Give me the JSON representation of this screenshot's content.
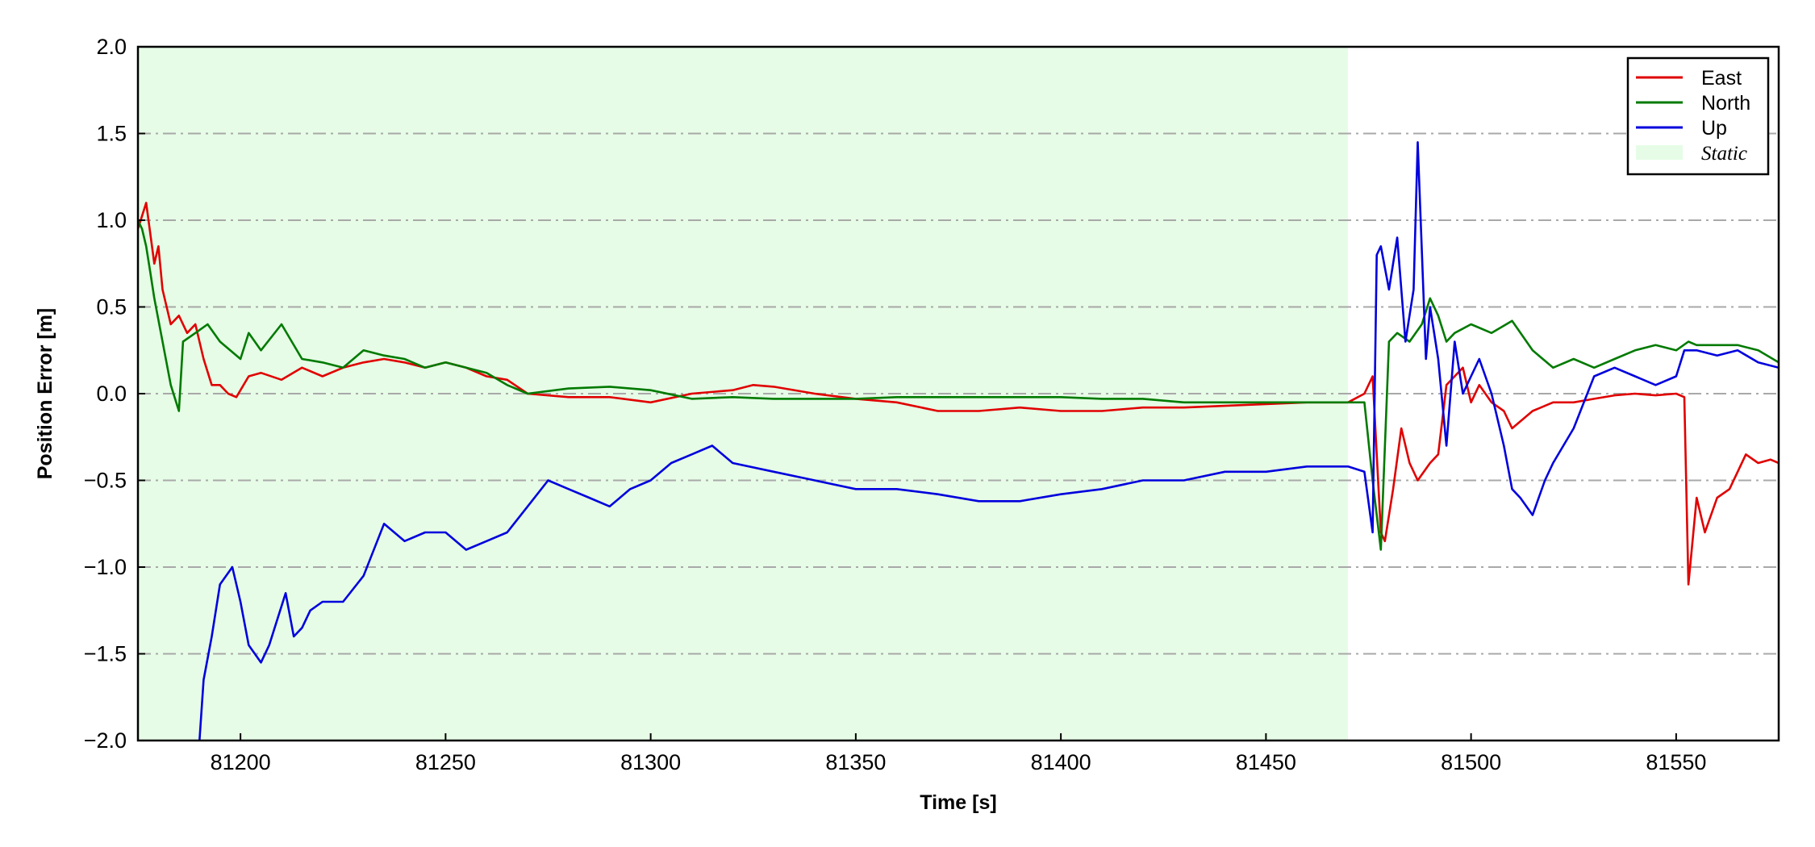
{
  "chart_data": {
    "type": "line",
    "title": "",
    "xlabel": "Time [s]",
    "ylabel": "Position Error [m]",
    "xlim": [
      81175,
      81575
    ],
    "ylim": [
      -2.0,
      2.0
    ],
    "xticks": [
      81200,
      81250,
      81300,
      81350,
      81400,
      81450,
      81500,
      81550
    ],
    "yticks": [
      -2.0,
      -1.5,
      -1.0,
      -0.5,
      0.0,
      0.5,
      1.0,
      1.5,
      2.0
    ],
    "ytick_labels": [
      "−2.0",
      "−1.5",
      "−1.0",
      "−0.5",
      "0.0",
      "0.5",
      "1.0",
      "1.5",
      "2.0"
    ],
    "grid": "horizontal dash-dot",
    "legend_position": "top-right",
    "static_region": {
      "name": "Static",
      "x_start": 81175,
      "x_end": 81470,
      "color": "#e6fce6"
    },
    "series": [
      {
        "name": "East",
        "color": "#e00000",
        "x": [
          81175,
          81177,
          81179,
          81180,
          81181,
          81183,
          81185,
          81187,
          81189,
          81191,
          81193,
          81195,
          81197,
          81199,
          81202,
          81205,
          81210,
          81215,
          81220,
          81225,
          81230,
          81235,
          81240,
          81245,
          81250,
          81255,
          81260,
          81265,
          81270,
          81280,
          81290,
          81300,
          81310,
          81320,
          81325,
          81330,
          81340,
          81350,
          81360,
          81370,
          81380,
          81390,
          81400,
          81410,
          81420,
          81430,
          81440,
          81450,
          81460,
          81470,
          81474,
          81476,
          81478,
          81479,
          81481,
          81483,
          81485,
          81487,
          81490,
          81492,
          81494,
          81496,
          81498,
          81500,
          81502,
          81505,
          81508,
          81510,
          81515,
          81520,
          81525,
          81530,
          81535,
          81540,
          81545,
          81550,
          81552,
          81553,
          81555,
          81557,
          81560,
          81563,
          81567,
          81570,
          81573,
          81575
        ],
        "values": [
          0.95,
          1.1,
          0.75,
          0.85,
          0.6,
          0.4,
          0.45,
          0.35,
          0.4,
          0.2,
          0.05,
          0.05,
          0.0,
          -0.02,
          0.1,
          0.12,
          0.08,
          0.15,
          0.1,
          0.15,
          0.18,
          0.2,
          0.18,
          0.15,
          0.18,
          0.15,
          0.1,
          0.08,
          0.0,
          -0.02,
          -0.02,
          -0.05,
          0.0,
          0.02,
          0.05,
          0.04,
          0.0,
          -0.03,
          -0.05,
          -0.1,
          -0.1,
          -0.08,
          -0.1,
          -0.1,
          -0.08,
          -0.08,
          -0.07,
          -0.06,
          -0.05,
          -0.05,
          0.0,
          0.1,
          -0.8,
          -0.85,
          -0.55,
          -0.2,
          -0.4,
          -0.5,
          -0.4,
          -0.35,
          0.05,
          0.1,
          0.15,
          -0.05,
          0.05,
          -0.05,
          -0.1,
          -0.2,
          -0.1,
          -0.05,
          -0.05,
          -0.03,
          -0.01,
          0.0,
          -0.01,
          0.0,
          -0.02,
          -1.1,
          -0.6,
          -0.8,
          -0.6,
          -0.55,
          -0.35,
          -0.4,
          -0.38,
          -0.4
        ]
      },
      {
        "name": "North",
        "color": "#007a00",
        "x": [
          81175,
          81176,
          81177,
          81178,
          81179,
          81181,
          81183,
          81185,
          81186,
          81189,
          81192,
          81195,
          81200,
          81202,
          81205,
          81210,
          81215,
          81220,
          81225,
          81230,
          81235,
          81240,
          81245,
          81250,
          81255,
          81260,
          81265,
          81270,
          81280,
          81290,
          81300,
          81310,
          81320,
          81330,
          81340,
          81350,
          81360,
          81370,
          81380,
          81390,
          81400,
          81410,
          81420,
          81430,
          81440,
          81450,
          81460,
          81470,
          81474,
          81476,
          81478,
          81480,
          81482,
          81485,
          81488,
          81490,
          81492,
          81494,
          81496,
          81500,
          81505,
          81510,
          81515,
          81520,
          81525,
          81530,
          81535,
          81540,
          81545,
          81550,
          81553,
          81555,
          81560,
          81565,
          81570,
          81575
        ],
        "values": [
          1.0,
          0.95,
          0.85,
          0.7,
          0.55,
          0.3,
          0.05,
          -0.1,
          0.3,
          0.35,
          0.4,
          0.3,
          0.2,
          0.35,
          0.25,
          0.4,
          0.2,
          0.18,
          0.15,
          0.25,
          0.22,
          0.2,
          0.15,
          0.18,
          0.15,
          0.12,
          0.05,
          0.0,
          0.03,
          0.04,
          0.02,
          -0.03,
          -0.02,
          -0.03,
          -0.03,
          -0.03,
          -0.02,
          -0.02,
          -0.02,
          -0.02,
          -0.02,
          -0.03,
          -0.03,
          -0.05,
          -0.05,
          -0.05,
          -0.05,
          -0.05,
          -0.05,
          -0.5,
          -0.9,
          0.3,
          0.35,
          0.3,
          0.4,
          0.55,
          0.45,
          0.3,
          0.35,
          0.4,
          0.35,
          0.42,
          0.25,
          0.15,
          0.2,
          0.15,
          0.2,
          0.25,
          0.28,
          0.25,
          0.3,
          0.28,
          0.28,
          0.28,
          0.25,
          0.18
        ]
      },
      {
        "name": "Up",
        "color": "#0000dd",
        "x": [
          81190,
          81191,
          81193,
          81195,
          81198,
          81200,
          81202,
          81205,
          81207,
          81209,
          81211,
          81213,
          81215,
          81217,
          81220,
          81225,
          81230,
          81235,
          81240,
          81245,
          81250,
          81255,
          81260,
          81265,
          81270,
          81275,
          81280,
          81285,
          81290,
          81295,
          81300,
          81305,
          81310,
          81315,
          81320,
          81330,
          81340,
          81350,
          81360,
          81370,
          81380,
          81390,
          81400,
          81410,
          81420,
          81430,
          81440,
          81450,
          81460,
          81470,
          81474,
          81476,
          81477,
          81478,
          81480,
          81482,
          81484,
          81486,
          81487,
          81489,
          81490,
          81492,
          81494,
          81496,
          81498,
          81500,
          81502,
          81505,
          81508,
          81510,
          81512,
          81515,
          81518,
          81520,
          81525,
          81530,
          81535,
          81540,
          81545,
          81550,
          81552,
          81555,
          81560,
          81565,
          81570,
          81575
        ],
        "values": [
          -2.0,
          -1.65,
          -1.4,
          -1.1,
          -1.0,
          -1.2,
          -1.45,
          -1.55,
          -1.45,
          -1.3,
          -1.15,
          -1.4,
          -1.35,
          -1.25,
          -1.2,
          -1.2,
          -1.05,
          -0.75,
          -0.85,
          -0.8,
          -0.8,
          -0.9,
          -0.85,
          -0.8,
          -0.65,
          -0.5,
          -0.55,
          -0.6,
          -0.65,
          -0.55,
          -0.5,
          -0.4,
          -0.35,
          -0.3,
          -0.4,
          -0.45,
          -0.5,
          -0.55,
          -0.55,
          -0.58,
          -0.62,
          -0.62,
          -0.58,
          -0.55,
          -0.5,
          -0.5,
          -0.45,
          -0.45,
          -0.42,
          -0.42,
          -0.45,
          -0.8,
          0.8,
          0.85,
          0.6,
          0.9,
          0.3,
          0.6,
          1.45,
          0.2,
          0.5,
          0.2,
          -0.3,
          0.3,
          0.0,
          0.1,
          0.2,
          0.0,
          -0.3,
          -0.55,
          -0.6,
          -0.7,
          -0.5,
          -0.4,
          -0.2,
          0.1,
          0.15,
          0.1,
          0.05,
          0.1,
          0.25,
          0.25,
          0.22,
          0.25,
          0.18,
          0.15
        ]
      }
    ]
  }
}
